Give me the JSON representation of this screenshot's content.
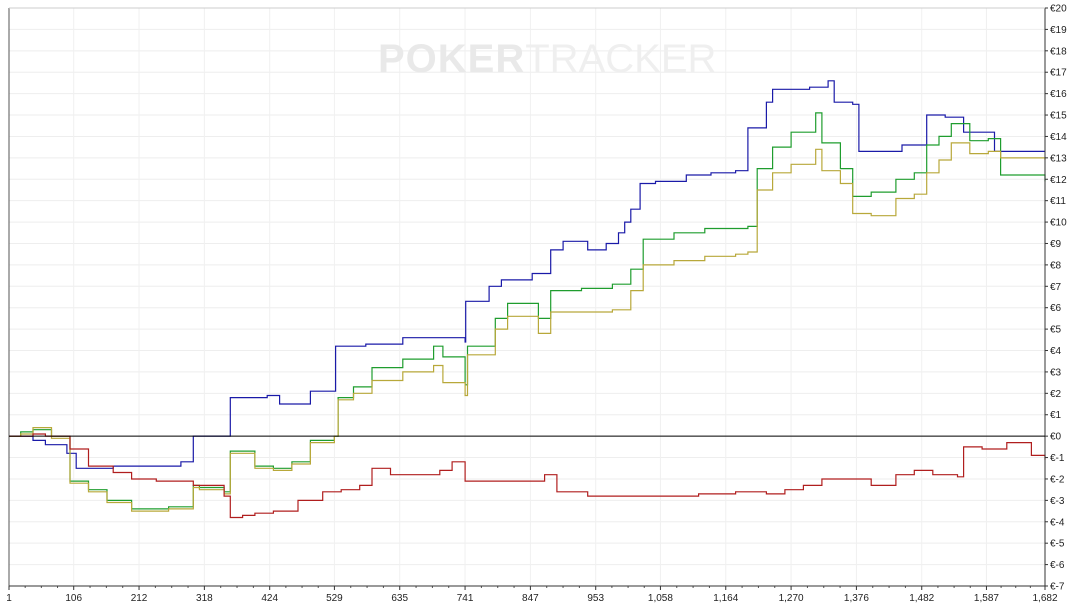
{
  "watermark": {
    "bold": "POKER",
    "light": "TRACKER"
  },
  "chart_data": {
    "type": "line",
    "title": "",
    "xlabel": "",
    "ylabel": "",
    "grid": true,
    "legend": "none",
    "xlim": [
      1,
      1682
    ],
    "ylim": [
      -7,
      20
    ],
    "x_ticks": [
      1,
      106,
      212,
      318,
      424,
      529,
      635,
      741,
      847,
      953,
      1058,
      1164,
      1270,
      1376,
      1482,
      1587,
      1682
    ],
    "x_tick_labels": [
      "1",
      "106",
      "212",
      "318",
      "424",
      "529",
      "635",
      "741",
      "847",
      "953",
      "1,058",
      "1,164",
      "1,270",
      "1,376",
      "1,482",
      "1,587",
      "1,682"
    ],
    "y_ticks": [
      -7,
      -6,
      -5,
      -4,
      -3,
      -2,
      -1,
      0,
      1,
      2,
      3,
      4,
      5,
      6,
      7,
      8,
      9,
      10,
      11,
      12,
      13,
      14,
      15,
      16,
      17,
      18,
      19,
      20
    ],
    "y_tick_labels": [
      "€-7",
      "€-6",
      "€-5",
      "€-4",
      "€-3",
      "€-2",
      "€-1",
      "€0",
      "€1",
      "€2",
      "€3",
      "€4",
      "€5",
      "€6",
      "€7",
      "€8",
      "€9",
      "€10",
      "€11",
      "€12",
      "€13",
      "€14",
      "€15",
      "€16",
      "€17",
      "€18",
      "€19",
      "€20"
    ],
    "series": [
      {
        "color": "#1a1aa8",
        "points": [
          [
            1,
            0
          ],
          [
            30,
            0
          ],
          [
            40,
            -0.2
          ],
          [
            60,
            -0.4
          ],
          [
            95,
            -0.8
          ],
          [
            110,
            -1.5
          ],
          [
            170,
            -1.4
          ],
          [
            230,
            -1.4
          ],
          [
            280,
            -1.2
          ],
          [
            300,
            0
          ],
          [
            350,
            0
          ],
          [
            360,
            1.8
          ],
          [
            420,
            1.9
          ],
          [
            440,
            1.5
          ],
          [
            480,
            1.5
          ],
          [
            490,
            2.1
          ],
          [
            530,
            2.1
          ],
          [
            531,
            4.2
          ],
          [
            580,
            4.3
          ],
          [
            640,
            4.6
          ],
          [
            700,
            4.6
          ],
          [
            741,
            4.4
          ],
          [
            742,
            6.3
          ],
          [
            780,
            7
          ],
          [
            800,
            7.3
          ],
          [
            850,
            7.6
          ],
          [
            880,
            8.7
          ],
          [
            900,
            9.1
          ],
          [
            940,
            8.7
          ],
          [
            970,
            9
          ],
          [
            990,
            9.5
          ],
          [
            1000,
            10
          ],
          [
            1010,
            10.6
          ],
          [
            1025,
            11.8
          ],
          [
            1050,
            11.9
          ],
          [
            1100,
            12.2
          ],
          [
            1140,
            12.3
          ],
          [
            1180,
            12.4
          ],
          [
            1200,
            14.4
          ],
          [
            1230,
            15.6
          ],
          [
            1240,
            16.2
          ],
          [
            1300,
            16.3
          ],
          [
            1330,
            16.6
          ],
          [
            1340,
            15.6
          ],
          [
            1370,
            15.5
          ],
          [
            1380,
            13.3
          ],
          [
            1420,
            13.3
          ],
          [
            1450,
            13.6
          ],
          [
            1490,
            15
          ],
          [
            1520,
            14.9
          ],
          [
            1550,
            14.2
          ],
          [
            1580,
            14.2
          ],
          [
            1600,
            13.3
          ],
          [
            1682,
            13.3
          ]
        ]
      },
      {
        "color": "#1f9d2e",
        "points": [
          [
            1,
            0
          ],
          [
            20,
            0.2
          ],
          [
            40,
            0.3
          ],
          [
            70,
            0
          ],
          [
            100,
            -2.1
          ],
          [
            130,
            -2.5
          ],
          [
            160,
            -3
          ],
          [
            200,
            -3.4
          ],
          [
            260,
            -3.3
          ],
          [
            300,
            -2.3
          ],
          [
            310,
            -2.4
          ],
          [
            350,
            -2.6
          ],
          [
            360,
            -0.7
          ],
          [
            400,
            -1.4
          ],
          [
            430,
            -1.5
          ],
          [
            460,
            -1.2
          ],
          [
            490,
            -0.2
          ],
          [
            529,
            0
          ],
          [
            535,
            1.8
          ],
          [
            560,
            2.3
          ],
          [
            590,
            3.2
          ],
          [
            640,
            3.6
          ],
          [
            690,
            4.2
          ],
          [
            705,
            3.7
          ],
          [
            741,
            2.4
          ],
          [
            745,
            4.2
          ],
          [
            790,
            5.5
          ],
          [
            810,
            6.2
          ],
          [
            860,
            5.5
          ],
          [
            880,
            6.8
          ],
          [
            930,
            6.9
          ],
          [
            980,
            7.1
          ],
          [
            1010,
            7.8
          ],
          [
            1030,
            9.2
          ],
          [
            1080,
            9.5
          ],
          [
            1130,
            9.7
          ],
          [
            1180,
            9.7
          ],
          [
            1200,
            9.8
          ],
          [
            1215,
            12.5
          ],
          [
            1240,
            13.5
          ],
          [
            1270,
            14.2
          ],
          [
            1310,
            15.1
          ],
          [
            1320,
            13.7
          ],
          [
            1350,
            12.5
          ],
          [
            1370,
            11.2
          ],
          [
            1400,
            11.4
          ],
          [
            1440,
            12
          ],
          [
            1470,
            12.3
          ],
          [
            1490,
            13.6
          ],
          [
            1510,
            14
          ],
          [
            1530,
            14.6
          ],
          [
            1560,
            13.8
          ],
          [
            1590,
            13.9
          ],
          [
            1610,
            12.2
          ],
          [
            1682,
            11.9
          ]
        ]
      },
      {
        "color": "#b8a83a",
        "points": [
          [
            1,
            0
          ],
          [
            20,
            0.1
          ],
          [
            40,
            0.4
          ],
          [
            70,
            -0.1
          ],
          [
            100,
            -2.2
          ],
          [
            130,
            -2.6
          ],
          [
            160,
            -3.1
          ],
          [
            200,
            -3.5
          ],
          [
            260,
            -3.4
          ],
          [
            300,
            -2.4
          ],
          [
            310,
            -2.5
          ],
          [
            350,
            -2.7
          ],
          [
            360,
            -0.8
          ],
          [
            400,
            -1.5
          ],
          [
            430,
            -1.6
          ],
          [
            460,
            -1.3
          ],
          [
            490,
            -0.3
          ],
          [
            529,
            0
          ],
          [
            535,
            1.7
          ],
          [
            560,
            2
          ],
          [
            590,
            2.6
          ],
          [
            640,
            3
          ],
          [
            690,
            3.3
          ],
          [
            705,
            2.5
          ],
          [
            741,
            1.9
          ],
          [
            745,
            3.8
          ],
          [
            790,
            5
          ],
          [
            810,
            5.6
          ],
          [
            860,
            4.8
          ],
          [
            880,
            5.8
          ],
          [
            930,
            5.8
          ],
          [
            980,
            5.9
          ],
          [
            1010,
            6.8
          ],
          [
            1030,
            8
          ],
          [
            1080,
            8.2
          ],
          [
            1130,
            8.4
          ],
          [
            1180,
            8.5
          ],
          [
            1200,
            8.6
          ],
          [
            1215,
            11.5
          ],
          [
            1240,
            12.3
          ],
          [
            1270,
            12.7
          ],
          [
            1310,
            13.4
          ],
          [
            1320,
            12.4
          ],
          [
            1350,
            11.8
          ],
          [
            1370,
            10.4
          ],
          [
            1400,
            10.3
          ],
          [
            1440,
            11.1
          ],
          [
            1470,
            11.3
          ],
          [
            1490,
            12.3
          ],
          [
            1510,
            12.9
          ],
          [
            1530,
            13.7
          ],
          [
            1560,
            13.2
          ],
          [
            1590,
            13.3
          ],
          [
            1610,
            13
          ],
          [
            1682,
            12.9
          ]
        ]
      },
      {
        "color": "#b01e1e",
        "points": [
          [
            1,
            0
          ],
          [
            20,
            0
          ],
          [
            40,
            0.1
          ],
          [
            60,
            0
          ],
          [
            100,
            -0.6
          ],
          [
            130,
            -1.4
          ],
          [
            170,
            -1.7
          ],
          [
            200,
            -2
          ],
          [
            240,
            -2.1
          ],
          [
            280,
            -2.1
          ],
          [
            300,
            -2.3
          ],
          [
            350,
            -2.8
          ],
          [
            360,
            -3.8
          ],
          [
            380,
            -3.7
          ],
          [
            400,
            -3.6
          ],
          [
            430,
            -3.5
          ],
          [
            470,
            -3
          ],
          [
            510,
            -2.6
          ],
          [
            540,
            -2.5
          ],
          [
            570,
            -2.3
          ],
          [
            590,
            -1.5
          ],
          [
            620,
            -1.8
          ],
          [
            680,
            -1.8
          ],
          [
            700,
            -1.6
          ],
          [
            720,
            -1.2
          ],
          [
            741,
            -2.1
          ],
          [
            790,
            -2.1
          ],
          [
            840,
            -2.1
          ],
          [
            870,
            -1.8
          ],
          [
            890,
            -2.6
          ],
          [
            940,
            -2.8
          ],
          [
            1000,
            -2.8
          ],
          [
            1060,
            -2.8
          ],
          [
            1120,
            -2.7
          ],
          [
            1180,
            -2.6
          ],
          [
            1230,
            -2.7
          ],
          [
            1260,
            -2.5
          ],
          [
            1290,
            -2.3
          ],
          [
            1320,
            -2
          ],
          [
            1350,
            -2
          ],
          [
            1400,
            -2.3
          ],
          [
            1440,
            -1.8
          ],
          [
            1470,
            -1.6
          ],
          [
            1500,
            -1.8
          ],
          [
            1540,
            -1.9
          ],
          [
            1550,
            -0.5
          ],
          [
            1580,
            -0.6
          ],
          [
            1620,
            -0.3
          ],
          [
            1660,
            -0.9
          ],
          [
            1682,
            -1.1
          ]
        ]
      }
    ]
  }
}
